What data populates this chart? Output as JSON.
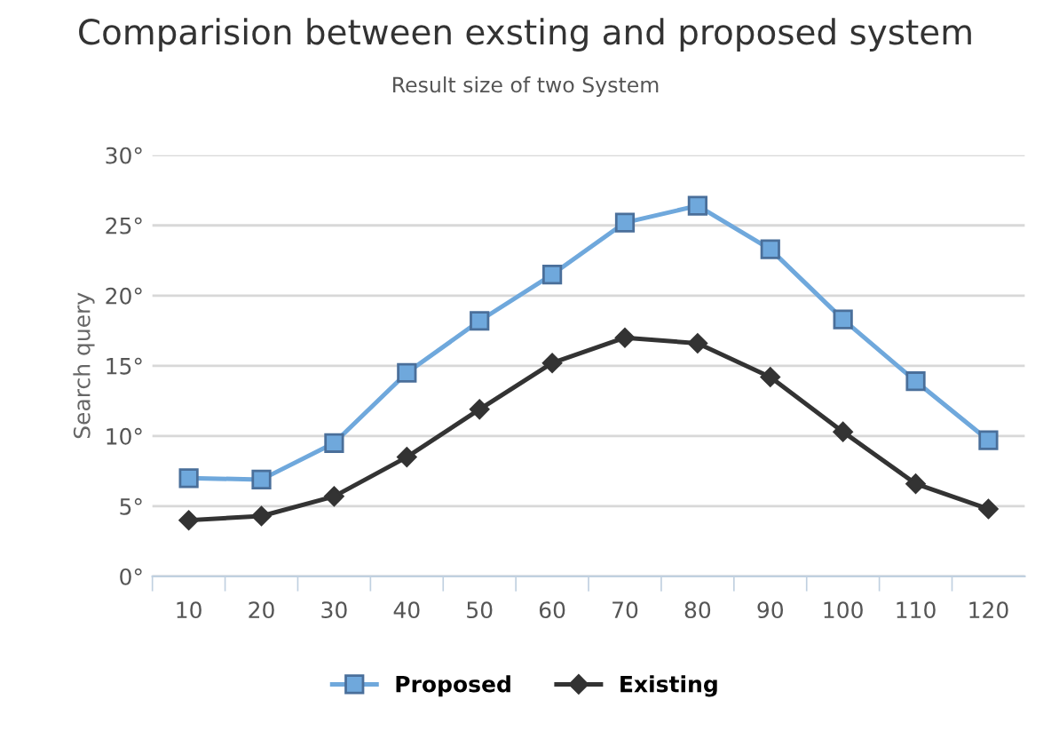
{
  "chart_data": {
    "type": "line",
    "title": "Comparision between exsting and proposed system",
    "subtitle": "Result size of two System",
    "ylabel": "Search query",
    "categories": [
      "10",
      "20",
      "30",
      "40",
      "50",
      "60",
      "70",
      "80",
      "90",
      "100",
      "110",
      "120"
    ],
    "series": [
      {
        "name": "Proposed",
        "color": "#6fa8dc",
        "marker": "square",
        "values": [
          7,
          6.9,
          9.5,
          14.5,
          18.2,
          21.5,
          25.2,
          26.4,
          23.3,
          18.3,
          13.9,
          9.7
        ]
      },
      {
        "name": "Existing",
        "color": "#333333",
        "marker": "diamond",
        "values": [
          4,
          4.3,
          5.7,
          8.5,
          11.9,
          15.2,
          17,
          16.6,
          14.2,
          10.3,
          6.6,
          4.8
        ]
      }
    ],
    "ylim": [
      0,
      30
    ],
    "yticks": [
      {
        "value": 0,
        "label": "0°"
      },
      {
        "value": 5,
        "label": "5°"
      },
      {
        "value": 10,
        "label": "10°"
      },
      {
        "value": 15,
        "label": "15°"
      },
      {
        "value": 20,
        "label": "20°"
      },
      {
        "value": 25,
        "label": "25°"
      },
      {
        "value": 30,
        "label": "30°"
      }
    ],
    "grid": "y",
    "legend": "bottom"
  }
}
